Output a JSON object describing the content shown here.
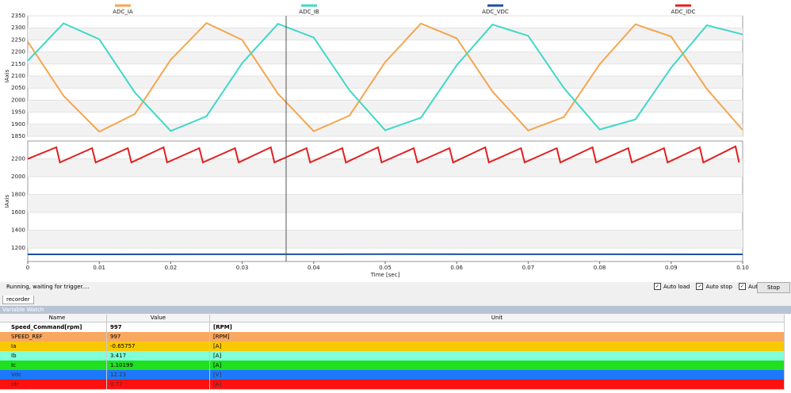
{
  "chart_data": [
    {
      "type": "line",
      "ylabel": "IAxis",
      "x": [
        0,
        0.005,
        0.01,
        0.015,
        0.02,
        0.025,
        0.03,
        0.035,
        0.04,
        0.045,
        0.05,
        0.055,
        0.06,
        0.065,
        0.07,
        0.075,
        0.08,
        0.085,
        0.09,
        0.095,
        0.1
      ],
      "series": [
        {
          "name": "ADC_IA",
          "color": "#f5a550",
          "values": [
            2243,
            2018,
            1869,
            1943,
            2168,
            2320,
            2250,
            2027,
            1871,
            1936,
            2158,
            2318,
            2257,
            2036,
            1874,
            1930,
            2149,
            2315,
            2264,
            2046,
            1876
          ]
        },
        {
          "name": "ADC_IB",
          "color": "#40d8c8",
          "values": [
            2163,
            2319,
            2253,
            2031,
            1872,
            1933,
            2154,
            2317,
            2260,
            2041,
            1875,
            1927,
            2145,
            2314,
            2267,
            2050,
            1878,
            1920,
            2135,
            2311,
            2273
          ]
        }
      ],
      "xlim": [
        0,
        0.1
      ],
      "ylim": [
        1850,
        2350
      ],
      "yticks": [
        1850,
        1900,
        1950,
        2000,
        2050,
        2100,
        2150,
        2200,
        2250,
        2300,
        2350
      ],
      "grid": true
    },
    {
      "type": "line",
      "ylabel": "IAxis",
      "xlabel": "Time [sec]",
      "series": [
        {
          "name": "ADC_VDC",
          "color": "#1f4fa0",
          "x": [
            0,
            0.05,
            0.1
          ],
          "values": [
            1130,
            1132,
            1130
          ]
        },
        {
          "name": "ADC_IDC",
          "color": "#e02020",
          "x": [
            0,
            0.004,
            0.0045,
            0.009,
            0.0095,
            0.014,
            0.0145,
            0.019,
            0.0195,
            0.024,
            0.0245,
            0.029,
            0.0295,
            0.034,
            0.0345,
            0.039,
            0.0395,
            0.044,
            0.0445,
            0.049,
            0.0495,
            0.054,
            0.0545,
            0.059,
            0.0595,
            0.064,
            0.0645,
            0.069,
            0.0695,
            0.074,
            0.0745,
            0.079,
            0.0795,
            0.084,
            0.0845,
            0.089,
            0.0895,
            0.094,
            0.0945,
            0.099,
            0.0995
          ],
          "values": [
            2200,
            2330,
            2160,
            2320,
            2160,
            2320,
            2160,
            2330,
            2160,
            2320,
            2160,
            2320,
            2160,
            2330,
            2160,
            2320,
            2160,
            2320,
            2160,
            2330,
            2160,
            2320,
            2160,
            2320,
            2160,
            2330,
            2160,
            2320,
            2160,
            2320,
            2160,
            2330,
            2160,
            2320,
            2160,
            2320,
            2160,
            2330,
            2160,
            2340,
            2160
          ]
        }
      ],
      "xlim": [
        0,
        0.1
      ],
      "ylim": [
        1050,
        2400
      ],
      "xticks": [
        0,
        0.01,
        0.02,
        0.03,
        0.04,
        0.05,
        0.06,
        0.07,
        0.08,
        0.09,
        {
          "value": 0.1,
          "label": "0.10"
        }
      ],
      "yticks": [
        1200,
        1400,
        1600,
        1800,
        2000,
        2200
      ],
      "grid": true
    }
  ],
  "status": "Running, waiting for trigger....",
  "checkboxes": [
    "Auto load",
    "Auto stop",
    "Auto run"
  ],
  "button": "Stop",
  "tab": "recorder",
  "watch": {
    "title": "Variable Watch",
    "columns": [
      "Name",
      "Value",
      "Unit"
    ],
    "rows": [
      [
        "Speed_Command[rpm]",
        "997",
        "[RPM]"
      ],
      [
        "SPEED_REF",
        "997",
        "[RPM]"
      ],
      [
        "Ia",
        "-0.65757",
        "[A]"
      ],
      [
        "Ib",
        "3.417",
        "[A]"
      ],
      [
        "Ic",
        "1.10199",
        "[A]"
      ],
      [
        "Vdc",
        "12.23",
        "[V]"
      ],
      [
        "Idc",
        "0.72",
        "[A]"
      ]
    ]
  }
}
